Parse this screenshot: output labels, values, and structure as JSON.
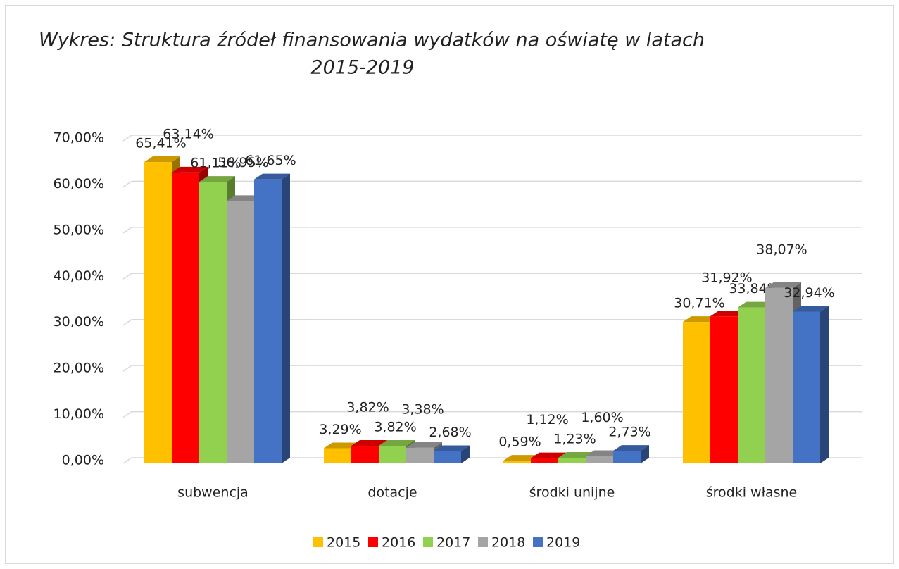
{
  "chart_data": {
    "type": "bar3d",
    "title": [
      "Wykres: Struktura źródeł finansowania wydatków na oświatę w latach",
      "2015-2019"
    ],
    "categories": [
      "subwencja",
      "dotacje",
      "środki unijne",
      "środki własne"
    ],
    "series": [
      {
        "name": "2015",
        "color": "#ffc000",
        "values": [
          65.41,
          3.29,
          0.59,
          30.71
        ],
        "value_labels": [
          "65,41%",
          "3,29%",
          "0,59%",
          "30,71%"
        ]
      },
      {
        "name": "2016",
        "color": "#ff0000",
        "values": [
          63.14,
          3.82,
          1.12,
          31.92
        ],
        "value_labels": [
          "63,14%",
          "3,82%",
          "1,12%",
          "31,92%"
        ]
      },
      {
        "name": "2017",
        "color": "#92d050",
        "values": [
          61.11,
          3.82,
          1.23,
          33.84
        ],
        "value_labels": [
          "61,11%",
          "3,82%",
          "1,23%",
          "33,84%"
        ]
      },
      {
        "name": "2018",
        "color": "#a5a5a5",
        "values": [
          56.95,
          3.38,
          1.6,
          38.07
        ],
        "value_labels": [
          "56,95%",
          "3,38%",
          "1,60%",
          "38,07%"
        ]
      },
      {
        "name": "2019",
        "color": "#4472c4",
        "values": [
          61.65,
          2.68,
          2.73,
          32.94
        ],
        "value_labels": [
          "61,65%",
          "2,68%",
          "2,73%",
          "32,94%"
        ]
      }
    ],
    "ylim": [
      0,
      70
    ],
    "yticks": [
      {
        "value": 0,
        "label": "0,00%"
      },
      {
        "value": 10,
        "label": "10,00%"
      },
      {
        "value": 20,
        "label": "20,00%"
      },
      {
        "value": 30,
        "label": "30,00%"
      },
      {
        "value": 40,
        "label": "40,00%"
      },
      {
        "value": 50,
        "label": "50,00%"
      },
      {
        "value": 60,
        "label": "60,00%"
      },
      {
        "value": 70,
        "label": "70,00%"
      }
    ],
    "grid": true,
    "legend": "bottom"
  }
}
